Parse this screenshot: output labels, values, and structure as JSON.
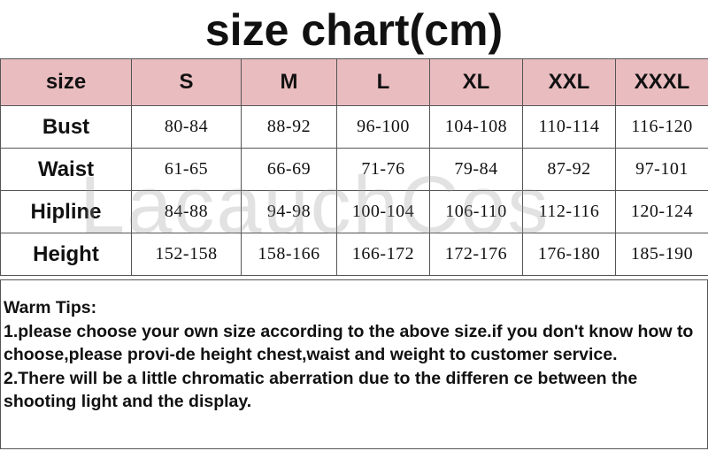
{
  "title": "size chart(cm)",
  "table": {
    "header": [
      "size",
      "S",
      "M",
      "L",
      "XL",
      "XXL",
      "XXXL"
    ],
    "rows": [
      [
        "Bust",
        "80-84",
        "88-92",
        "96-100",
        "104-108",
        "110-114",
        "116-120"
      ],
      [
        "Waist",
        "61-65",
        "66-69",
        "71-76",
        "79-84",
        "87-92",
        "97-101"
      ],
      [
        "Hipline",
        "84-88",
        "94-98",
        "100-104",
        "106-110",
        "112-116",
        "120-124"
      ],
      [
        "Height",
        "152-158",
        "158-166",
        "166-172",
        "172-176",
        "176-180",
        "185-190"
      ]
    ]
  },
  "watermark": "LacauchCos",
  "tips": {
    "heading": "Warm Tips:",
    "items": [
      "1.please choose your own size according to the above size.if you don't know how to choose,please provi-de height chest,waist and weight to customer service.",
      "2.There will be a little chromatic aberration due to the differen ce between the shooting light and the display."
    ]
  }
}
